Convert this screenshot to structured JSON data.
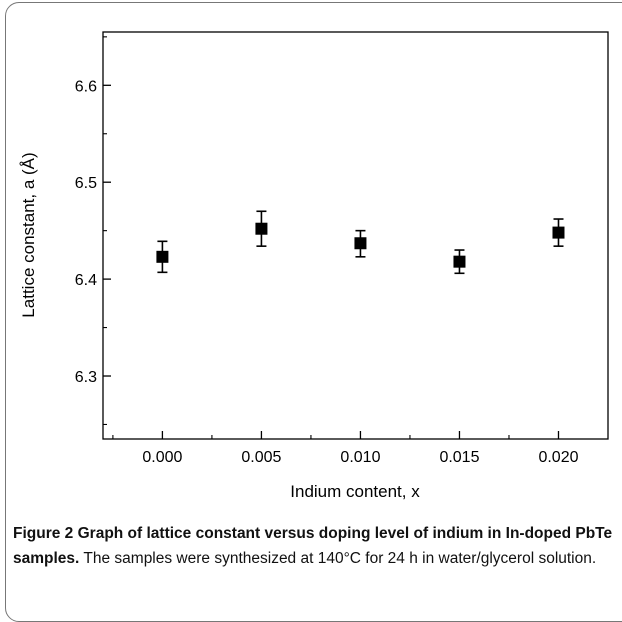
{
  "chart_data": {
    "type": "scatter",
    "title": "",
    "xlabel": "Indium content, x",
    "ylabel": "Lattice constant, a (Å)",
    "xlim": [
      -0.003,
      0.0225
    ],
    "ylim": [
      6.235,
      6.655
    ],
    "x_ticks": [
      0.0,
      0.005,
      0.01,
      0.015,
      0.02
    ],
    "x_tick_labels": [
      "0.000",
      "0.005",
      "0.010",
      "0.015",
      "0.020"
    ],
    "y_ticks": [
      6.3,
      6.4,
      6.5,
      6.6
    ],
    "y_tick_labels": [
      "6.3",
      "6.4",
      "6.5",
      "6.6"
    ],
    "grid": false,
    "marker_color": "#000000",
    "marker": "square",
    "points": [
      {
        "x": 0.0,
        "y": 6.423,
        "yerr_low": 6.407,
        "yerr_high": 6.439
      },
      {
        "x": 0.005,
        "y": 6.452,
        "yerr_low": 6.434,
        "yerr_high": 6.47
      },
      {
        "x": 0.01,
        "y": 6.437,
        "yerr_low": 6.423,
        "yerr_high": 6.45
      },
      {
        "x": 0.015,
        "y": 6.418,
        "yerr_low": 6.406,
        "yerr_high": 6.43
      },
      {
        "x": 0.02,
        "y": 6.448,
        "yerr_low": 6.434,
        "yerr_high": 6.462
      }
    ]
  },
  "caption": {
    "label": "Figure 2",
    "title": "Graph of lattice constant versus doping level of indium in In-doped PbTe samples.",
    "text": "The samples were synthesized at 140°C for 24 h in water/glycerol solution."
  }
}
